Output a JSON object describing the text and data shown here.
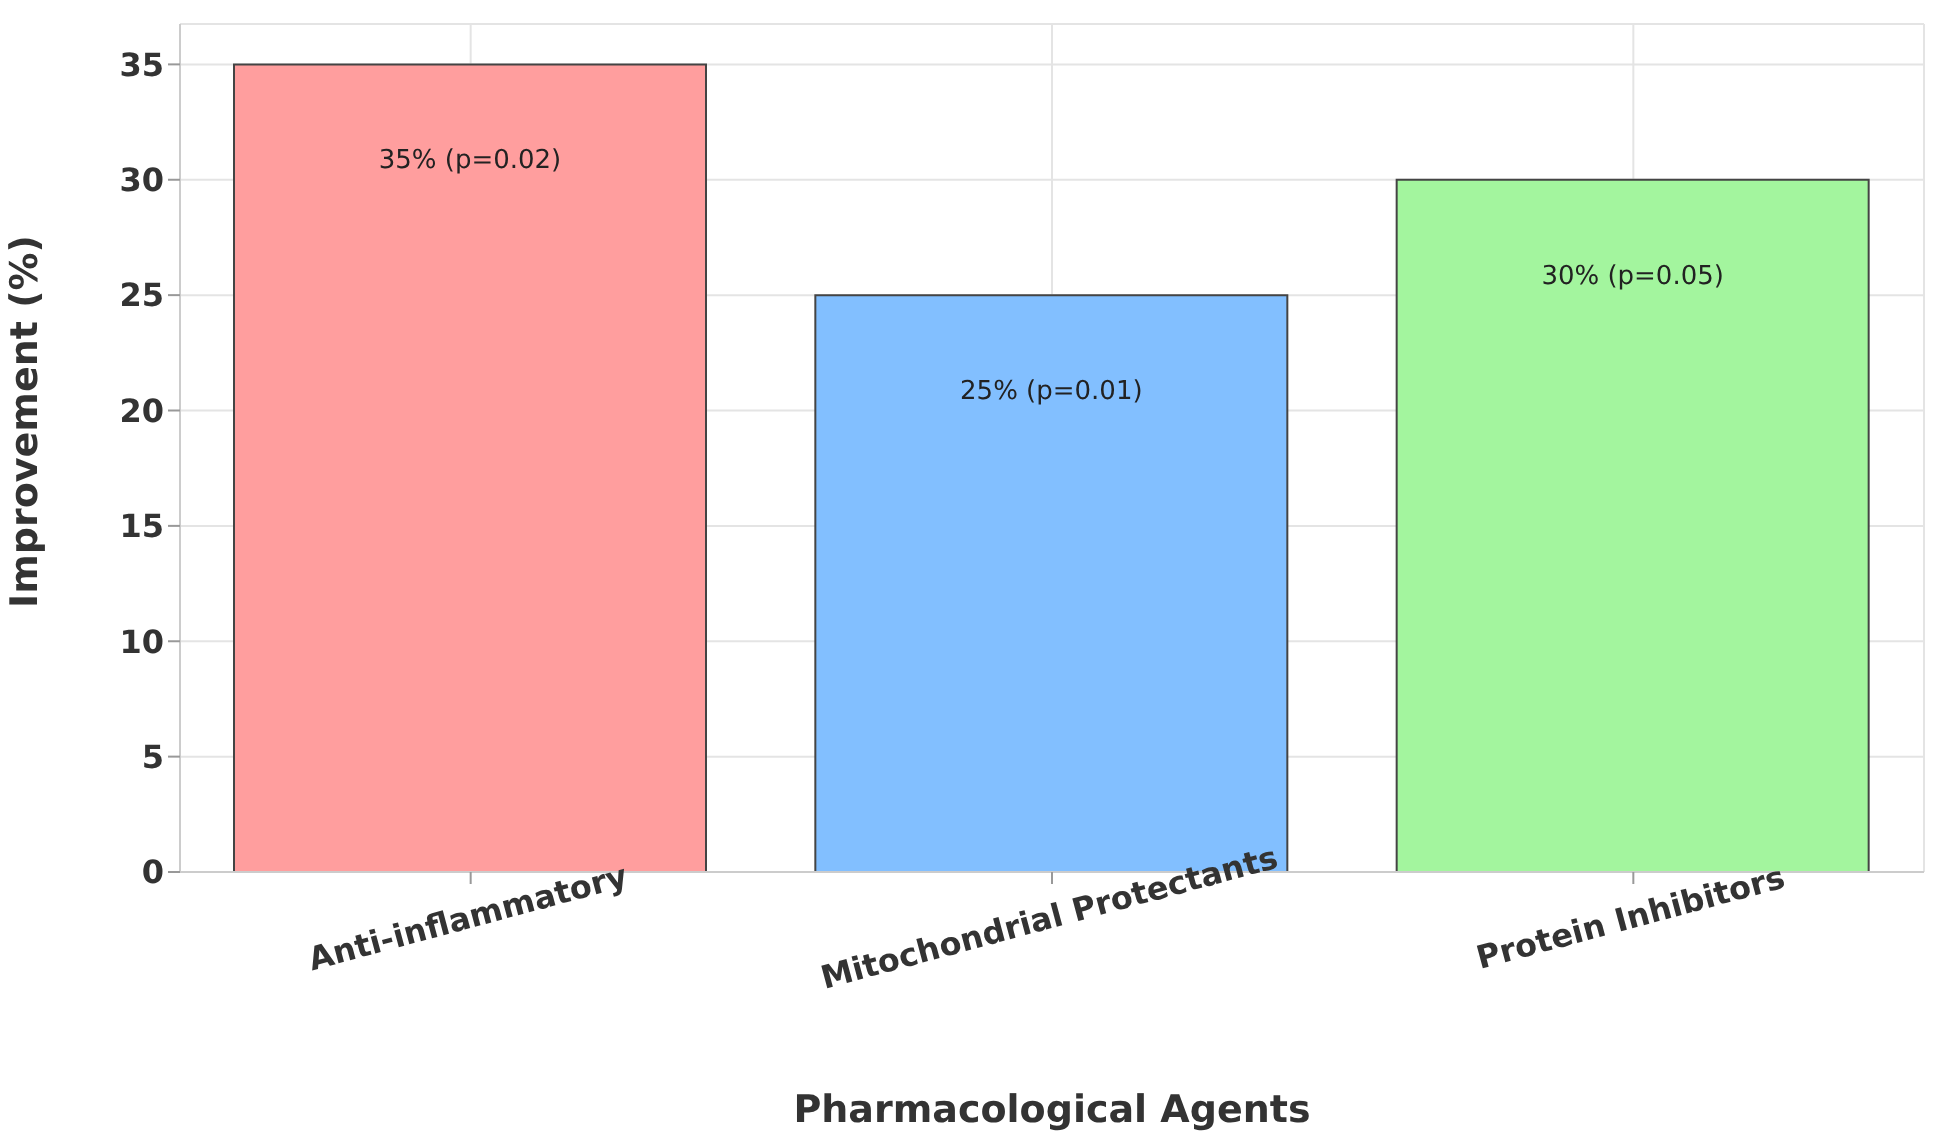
{
  "chart_data": {
    "type": "bar",
    "xlabel": "Pharmacological Agents",
    "ylabel": "Improvement (%)",
    "categories": [
      "Anti-inflammatory",
      "Mitochondrial Protectants",
      "Protein Inhibitors"
    ],
    "values": [
      35,
      25,
      30
    ],
    "colors": [
      "#ff9e9e",
      "#82bfff",
      "#a3f59e"
    ],
    "value_labels": [
      "35% (p=0.02)",
      "25% (p=0.01)",
      "30% (p=0.05)"
    ],
    "ylim": [
      0,
      36.75
    ],
    "yticks": [
      0,
      5,
      10,
      15,
      20,
      25,
      30,
      35
    ],
    "grid": true
  }
}
